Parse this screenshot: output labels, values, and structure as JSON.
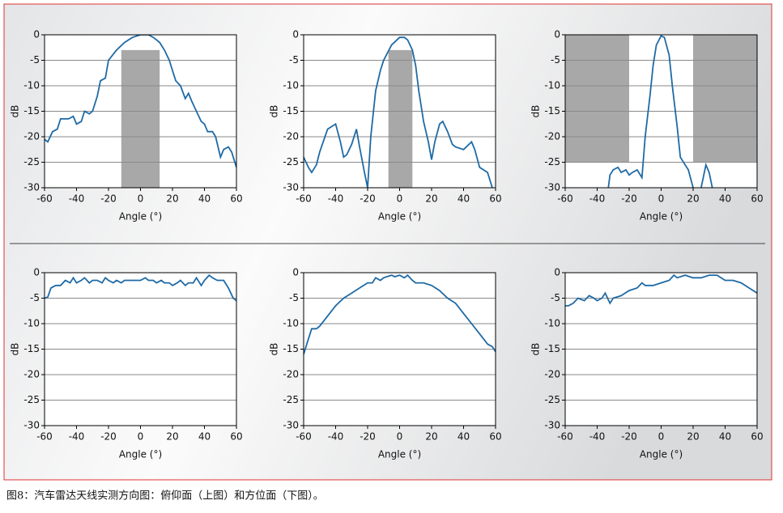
{
  "chart_data": [
    {
      "type": "line",
      "xlabel": "Angle (°)",
      "ylabel": "dB",
      "color": "#1f6aa5",
      "grid": true,
      "xlim": [
        -60,
        60
      ],
      "ylim": [
        -30,
        0
      ],
      "xticks": [
        -60,
        -40,
        -20,
        0,
        20,
        40,
        60
      ],
      "yticks": [
        0,
        -5,
        -10,
        -15,
        -20,
        -25,
        -30
      ],
      "regions": [
        {
          "x": [
            -12,
            12
          ],
          "y": [
            -30,
            -3
          ]
        }
      ],
      "x": [
        -60,
        -58,
        -55,
        -52,
        -50,
        -45,
        -42,
        -40,
        -37,
        -35,
        -32,
        -30,
        -27,
        -25,
        -22,
        -20,
        -15,
        -10,
        -5,
        0,
        5,
        8,
        10,
        12,
        15,
        18,
        20,
        22,
        25,
        28,
        30,
        32,
        35,
        38,
        40,
        42,
        45,
        47,
        50,
        52,
        55,
        57,
        60
      ],
      "values": [
        -20.5,
        -21,
        -19,
        -18.5,
        -16.5,
        -16.5,
        -16,
        -17.5,
        -17,
        -15,
        -15.5,
        -15,
        -12,
        -9,
        -8.5,
        -5,
        -3,
        -1.5,
        -0.5,
        0,
        0,
        -0.5,
        -1,
        -1.5,
        -3,
        -5,
        -7,
        -9,
        -10,
        -12.5,
        -11.5,
        -13,
        -15,
        -17,
        -17.5,
        -19,
        -19,
        -20,
        -24,
        -22.5,
        -22,
        -23,
        -26
      ]
    },
    {
      "type": "line",
      "xlabel": "Angle (°)",
      "ylabel": "dB",
      "color": "#1f6aa5",
      "grid": true,
      "xlim": [
        -60,
        60
      ],
      "ylim": [
        -30,
        0
      ],
      "xticks": [
        -60,
        -40,
        -20,
        0,
        20,
        40,
        60
      ],
      "yticks": [
        0,
        -5,
        -10,
        -15,
        -20,
        -25,
        -30
      ],
      "regions": [
        {
          "x": [
            -7,
            8
          ],
          "y": [
            -30,
            -3
          ]
        }
      ],
      "x": [
        -60,
        -57,
        -55,
        -52,
        -50,
        -45,
        -40,
        -37,
        -35,
        -33,
        -30,
        -27,
        -25,
        -22,
        -20,
        -18,
        -15,
        -12,
        -10,
        -5,
        0,
        3,
        5,
        8,
        10,
        12,
        15,
        18,
        20,
        22,
        25,
        27,
        30,
        33,
        35,
        40,
        45,
        47,
        50,
        55,
        58
      ],
      "values": [
        -24,
        -26,
        -27,
        -25.5,
        -23,
        -18.5,
        -17.5,
        -21,
        -24,
        -23.5,
        -21.5,
        -18.5,
        -22,
        -27,
        -30,
        -20,
        -11,
        -7,
        -5,
        -2,
        -0.5,
        -0.5,
        -1,
        -3,
        -6,
        -11,
        -17,
        -21,
        -24.5,
        -21,
        -17.5,
        -17,
        -19,
        -21.5,
        -22,
        -22.5,
        -21,
        -22.5,
        -26,
        -27,
        -30
      ]
    },
    {
      "type": "line",
      "xlabel": "Angle (°)",
      "ylabel": "dB",
      "color": "#1f6aa5",
      "grid": true,
      "xlim": [
        -60,
        60
      ],
      "ylim": [
        -30,
        0
      ],
      "xticks": [
        -60,
        -40,
        -20,
        0,
        20,
        40,
        60
      ],
      "yticks": [
        0,
        -5,
        -10,
        -15,
        -20,
        -25,
        -30
      ],
      "regions": [
        {
          "x": [
            -60,
            -20
          ],
          "y": [
            -25,
            0
          ]
        },
        {
          "x": [
            20,
            60
          ],
          "y": [
            -25,
            0
          ]
        }
      ],
      "x": [
        -33,
        -32,
        -30,
        -27,
        -25,
        -22,
        -20,
        -18,
        -15,
        -12,
        -10,
        -7,
        -5,
        -3,
        0,
        2,
        5,
        7,
        10,
        12,
        15,
        17,
        20,
        22,
        25,
        28,
        30,
        32
      ],
      "values": [
        -30,
        -27.5,
        -26.5,
        -26,
        -27,
        -26.5,
        -27.5,
        -27,
        -26.5,
        -28,
        -20,
        -12,
        -6,
        -2,
        -0.2,
        -0.5,
        -4,
        -10,
        -18,
        -24,
        -25.5,
        -26.5,
        -30,
        null,
        -30,
        -25.5,
        -27,
        -30
      ]
    },
    {
      "type": "line",
      "xlabel": "Angle (°)",
      "ylabel": "dB",
      "color": "#1f6aa5",
      "grid": true,
      "xlim": [
        -60,
        60
      ],
      "ylim": [
        -30,
        0
      ],
      "xticks": [
        -60,
        -40,
        -20,
        0,
        20,
        40,
        60
      ],
      "yticks": [
        0,
        -5,
        -10,
        -15,
        -20,
        -25,
        -30
      ],
      "x": [
        -60,
        -58,
        -56,
        -53,
        -50,
        -47,
        -44,
        -42,
        -40,
        -37,
        -35,
        -32,
        -30,
        -27,
        -24,
        -22,
        -20,
        -17,
        -15,
        -12,
        -10,
        -5,
        0,
        3,
        5,
        8,
        10,
        13,
        15,
        18,
        20,
        23,
        25,
        28,
        30,
        33,
        35,
        38,
        40,
        43,
        45,
        48,
        50,
        52,
        55,
        58,
        60
      ],
      "values": [
        -5,
        -4.8,
        -3,
        -2.5,
        -2.5,
        -1.5,
        -2,
        -1,
        -2,
        -1.5,
        -1,
        -2,
        -1.5,
        -1.5,
        -2,
        -1,
        -1.5,
        -2,
        -1.5,
        -2,
        -1.5,
        -1.5,
        -1.5,
        -1,
        -1.5,
        -1.5,
        -2,
        -1.5,
        -2,
        -2,
        -2.5,
        -2,
        -1.5,
        -2.5,
        -2,
        -2,
        -1,
        -2.5,
        -1.5,
        -0.5,
        -1,
        -1.5,
        -1.5,
        -1.5,
        -3,
        -5,
        -5.5
      ]
    },
    {
      "type": "line",
      "xlabel": "Angle (°)",
      "ylabel": "dB",
      "color": "#1f6aa5",
      "grid": true,
      "xlim": [
        -60,
        60
      ],
      "ylim": [
        -30,
        0
      ],
      "xticks": [
        -60,
        -40,
        -20,
        0,
        20,
        40,
        60
      ],
      "yticks": [
        0,
        -5,
        -10,
        -15,
        -20,
        -25,
        -30
      ],
      "x": [
        -60,
        -58,
        -55,
        -52,
        -50,
        -45,
        -40,
        -35,
        -30,
        -25,
        -20,
        -17,
        -15,
        -12,
        -10,
        -5,
        -3,
        0,
        3,
        5,
        8,
        10,
        15,
        20,
        25,
        30,
        35,
        40,
        45,
        50,
        55,
        58,
        60
      ],
      "values": [
        -16,
        -14,
        -11,
        -11,
        -10.5,
        -8.5,
        -6.5,
        -5,
        -4,
        -3,
        -2,
        -2,
        -1,
        -1.5,
        -1,
        -0.5,
        -0.8,
        -0.5,
        -1,
        -0.5,
        -1.5,
        -2,
        -2,
        -2.5,
        -3.5,
        -5,
        -6,
        -8,
        -10,
        -12,
        -14,
        -14.5,
        -15.5
      ]
    },
    {
      "type": "line",
      "xlabel": "Angle (°)",
      "ylabel": "dB",
      "color": "#1f6aa5",
      "grid": true,
      "xlim": [
        -60,
        60
      ],
      "ylim": [
        -30,
        0
      ],
      "xticks": [
        -60,
        -40,
        -20,
        0,
        20,
        40,
        60
      ],
      "yticks": [
        0,
        -5,
        -10,
        -15,
        -20,
        -25,
        -30
      ],
      "x": [
        -60,
        -58,
        -55,
        -52,
        -48,
        -45,
        -42,
        -40,
        -37,
        -35,
        -32,
        -30,
        -25,
        -20,
        -15,
        -12,
        -10,
        -5,
        0,
        5,
        8,
        10,
        15,
        20,
        25,
        30,
        35,
        40,
        45,
        50,
        55,
        60
      ],
      "values": [
        -6.5,
        -6.5,
        -6,
        -5,
        -5.5,
        -4.5,
        -5,
        -5.5,
        -5,
        -4,
        -6,
        -5,
        -4.5,
        -3.5,
        -3,
        -2,
        -2.5,
        -2.5,
        -2,
        -1.5,
        -0.5,
        -1,
        -0.5,
        -1,
        -1,
        -0.5,
        -0.5,
        -1.5,
        -1.5,
        -2,
        -3,
        -4
      ]
    }
  ],
  "caption": "图8：汽车雷达天线实测方向图：俯仰面（上图）和方位面（下图）。"
}
